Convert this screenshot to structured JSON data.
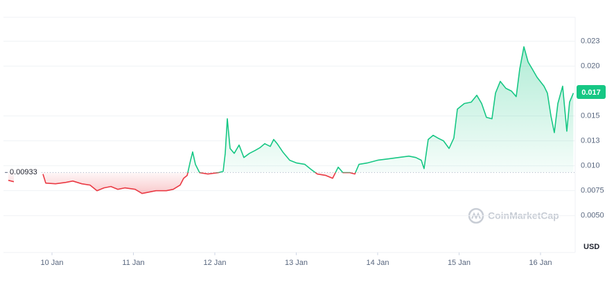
{
  "chart_data": {
    "type": "line",
    "x": [
      9.464,
      9.532,
      null,
      9.889,
      9.923,
      10.043,
      10.17,
      10.255,
      10.366,
      10.468,
      10.553,
      10.638,
      10.723,
      10.809,
      10.894,
      11.021,
      11.106,
      11.191,
      11.277,
      11.404,
      11.489,
      11.574,
      11.617,
      11.66,
      11.702,
      11.728,
      11.762,
      11.813,
      11.915,
      12.043,
      12.102,
      12.128,
      12.153,
      12.187,
      12.238,
      12.298,
      12.357,
      12.426,
      12.494,
      12.553,
      12.613,
      12.681,
      12.723,
      12.766,
      12.834,
      12.919,
      13.004,
      13.106,
      13.191,
      13.26,
      13.362,
      13.447,
      13.515,
      13.574,
      13.66,
      13.719,
      13.77,
      13.872,
      14.0,
      14.128,
      14.255,
      14.383,
      14.468,
      14.536,
      14.57,
      14.621,
      14.681,
      14.74,
      14.809,
      14.877,
      14.936,
      14.979,
      15.064,
      15.149,
      15.217,
      15.277,
      15.336,
      15.404,
      15.447,
      15.506,
      15.574,
      15.643,
      15.702,
      15.745,
      15.796,
      15.847,
      15.898,
      15.957,
      16.043,
      16.085,
      16.128,
      16.17,
      16.213,
      16.272,
      16.323,
      16.357,
      16.404
    ],
    "values": [
      0.00854,
      0.0084,
      null,
      0.00917,
      0.00826,
      0.00819,
      0.00833,
      0.00847,
      0.00819,
      0.00806,
      0.0075,
      0.00778,
      0.00792,
      0.00764,
      0.00778,
      0.00764,
      0.00722,
      0.00736,
      0.0075,
      0.0075,
      0.00764,
      0.00806,
      0.00875,
      0.00903,
      0.01056,
      0.01139,
      0.01014,
      0.00931,
      0.00917,
      0.00931,
      0.00944,
      0.01125,
      0.01472,
      0.01174,
      0.01125,
      0.01208,
      0.01083,
      0.01125,
      0.01153,
      0.01181,
      0.01222,
      0.01194,
      0.01264,
      0.01222,
      0.01139,
      0.01056,
      0.01028,
      0.01014,
      0.00958,
      0.00917,
      0.00903,
      0.00875,
      0.00986,
      0.00931,
      0.00931,
      0.00917,
      0.01014,
      0.01028,
      0.01056,
      0.01069,
      0.01083,
      0.01097,
      0.01083,
      0.01056,
      0.00972,
      0.01264,
      0.01306,
      0.01278,
      0.0125,
      0.01174,
      0.01278,
      0.01569,
      0.01625,
      0.01639,
      0.01708,
      0.01625,
      0.01486,
      0.01472,
      0.01729,
      0.01847,
      0.01778,
      0.0175,
      0.01694,
      0.01972,
      0.02194,
      0.02042,
      0.01972,
      0.01889,
      0.01799,
      0.01729,
      0.015,
      0.01333,
      0.01625,
      0.01799,
      0.01347,
      0.01639,
      0.01729
    ],
    "baseline": 0.00933,
    "current_price": {
      "value": 0.0174,
      "label": "0.017"
    },
    "color_up": "#16c784",
    "color_down": "#ea3943",
    "xlim": [
      9.404,
      16.426
    ],
    "xticks": [
      {
        "value": 10,
        "label": "10 Jan"
      },
      {
        "value": 11,
        "label": "11 Jan"
      },
      {
        "value": 12,
        "label": "12 Jan"
      },
      {
        "value": 13,
        "label": "13 Jan"
      },
      {
        "value": 14,
        "label": "14 Jan"
      },
      {
        "value": 15,
        "label": "15 Jan"
      },
      {
        "value": 16,
        "label": "16 Jan"
      }
    ],
    "ylim": [
      0.0013,
      0.0249
    ],
    "yticks": [
      {
        "value": 0.0225,
        "label": "0.023"
      },
      {
        "value": 0.02,
        "label": "0.020"
      },
      {
        "value": 0.015,
        "label": "0.015"
      },
      {
        "value": 0.0125,
        "label": "0.013"
      },
      {
        "value": 0.01,
        "label": "0.010"
      },
      0.0075,
      {
        "value": 0.005,
        "label": "0.0050"
      }
    ],
    "grid": true,
    "currency": "USD",
    "watermark": "CoinMarketCap"
  }
}
